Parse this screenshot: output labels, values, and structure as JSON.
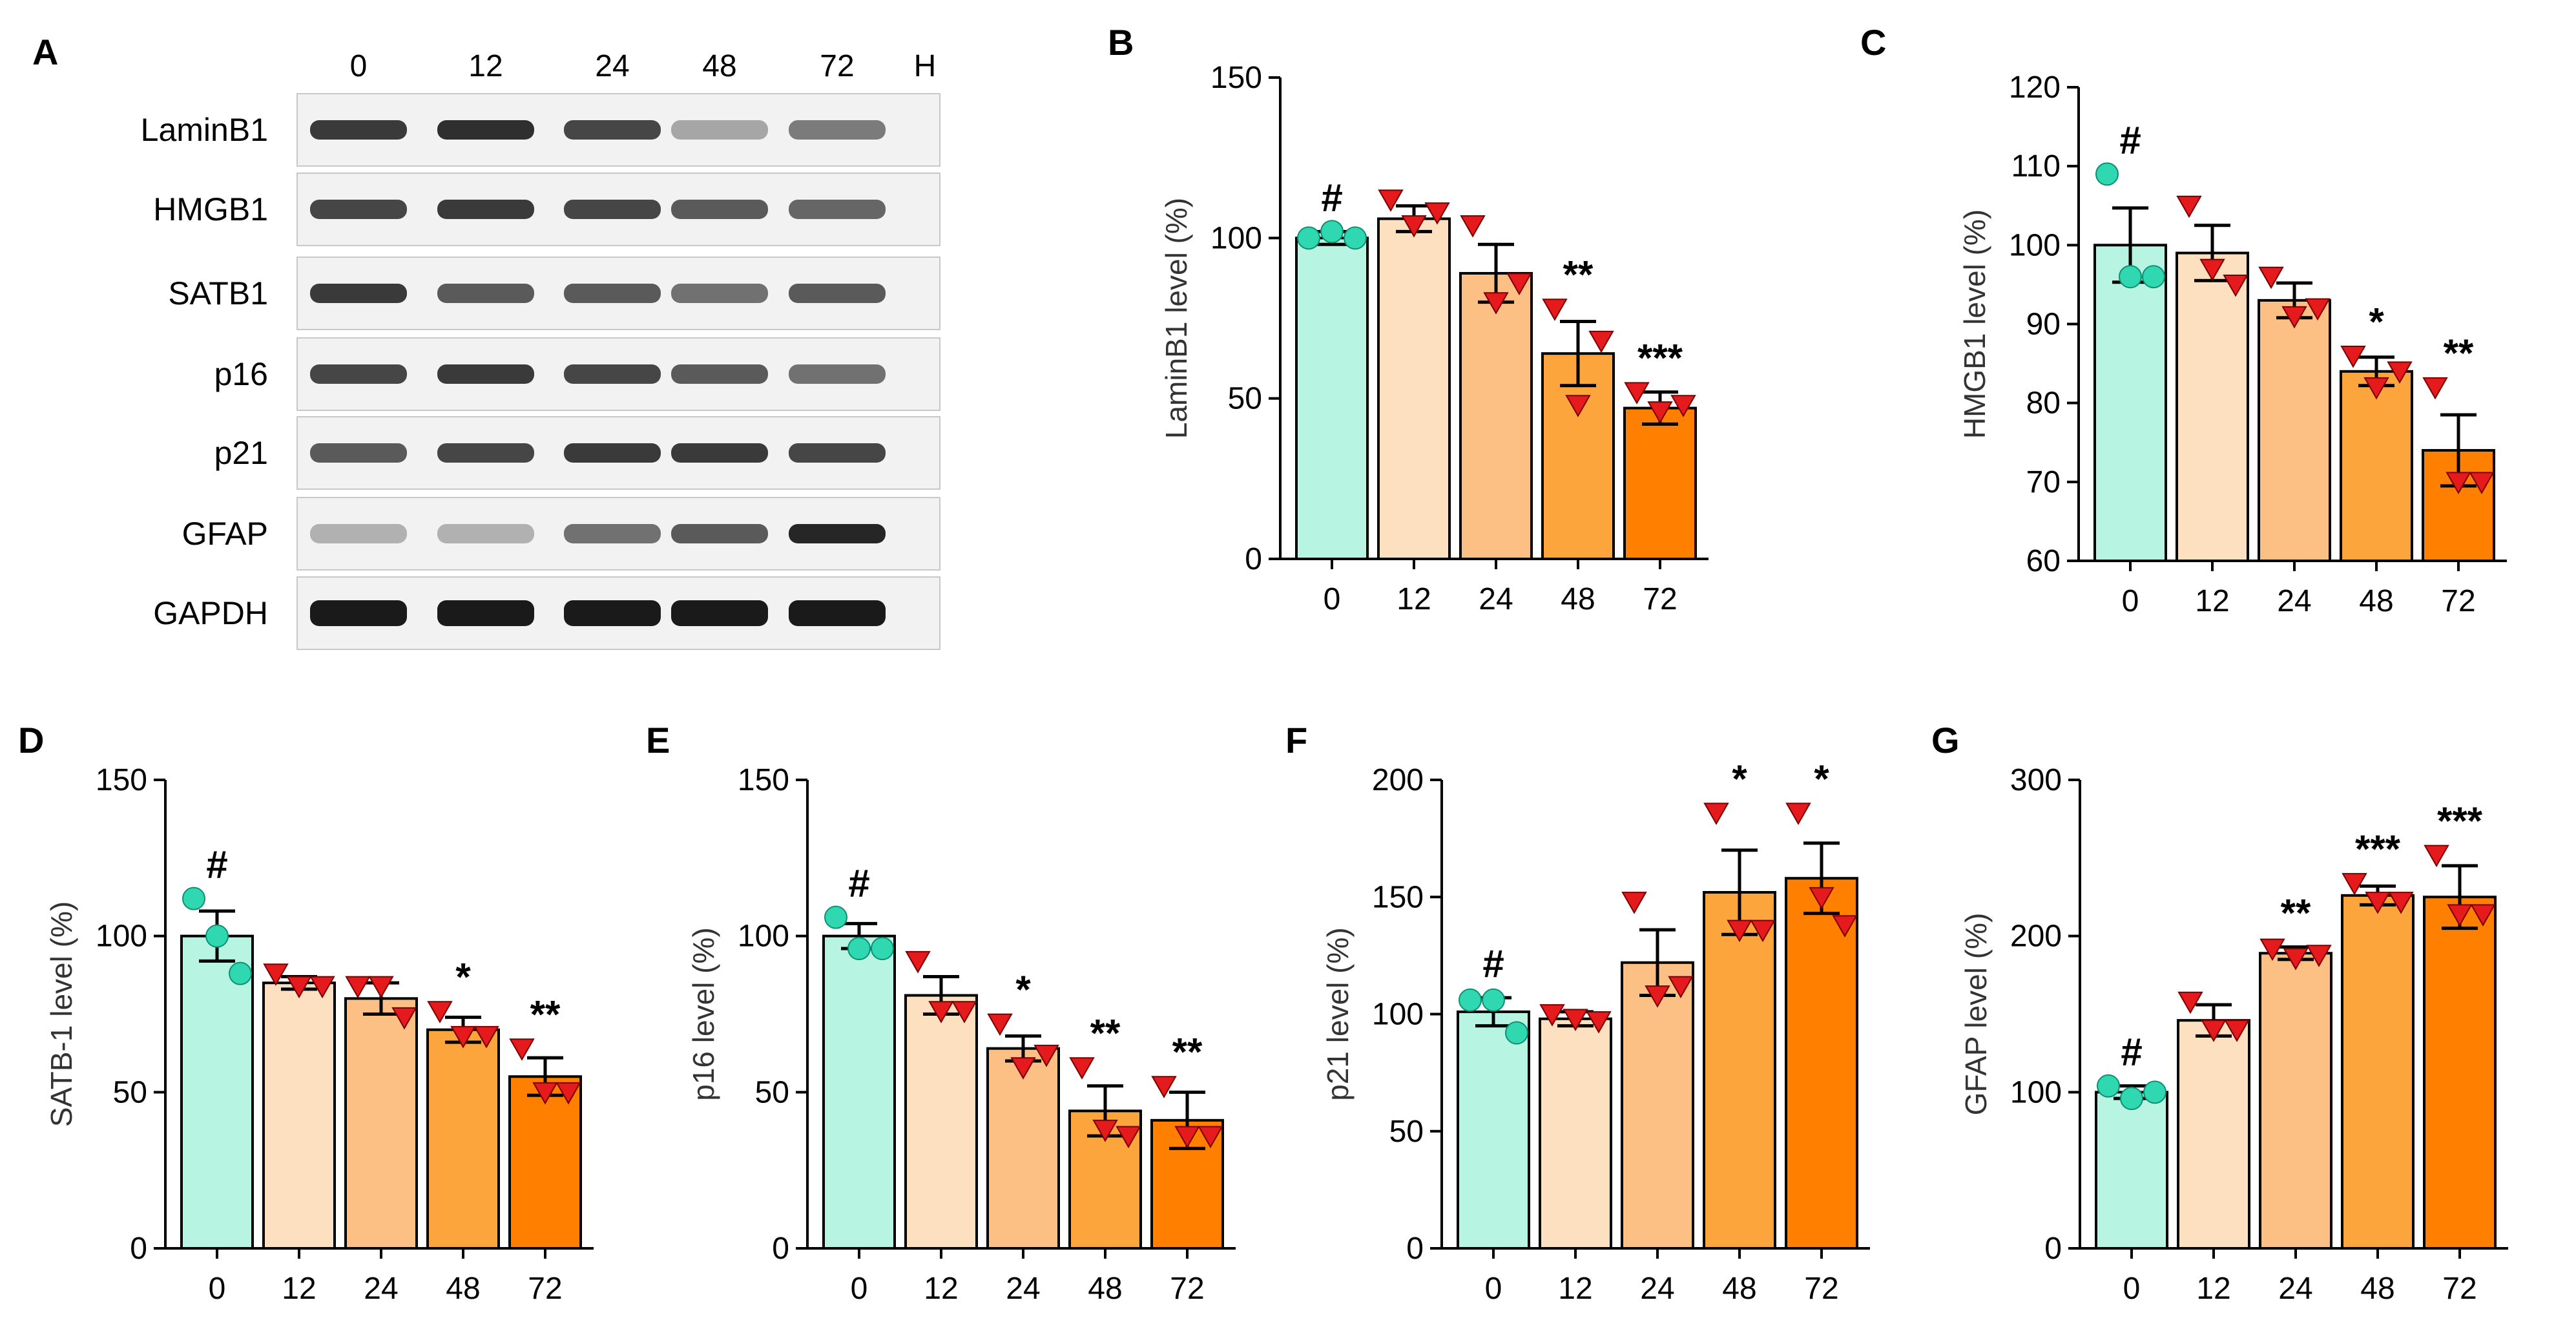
{
  "figure": {
    "colors": {
      "g0": "#b8f4e2",
      "g12": "#fde0c0",
      "g24": "#fdc084",
      "g48": "#fda53d",
      "g72": "#ff8000",
      "circle": "#2fd8b0",
      "triangle": "#e41a1c",
      "blot_bg": "#f2f2f2",
      "band": "#1a1a1a"
    }
  },
  "panel_A": {
    "letter": "A",
    "lanes": [
      "0",
      "12",
      "24",
      "48",
      "72"
    ],
    "unit": "H",
    "rows": [
      {
        "name": "LaminB1",
        "intensity": [
          0.85,
          0.9,
          0.8,
          0.35,
          0.55
        ]
      },
      {
        "name": "HMGB1",
        "intensity": [
          0.8,
          0.85,
          0.8,
          0.7,
          0.65
        ]
      },
      {
        "name": "SATB1",
        "intensity": [
          0.85,
          0.7,
          0.7,
          0.6,
          0.7
        ]
      },
      {
        "name": "p16",
        "intensity": [
          0.8,
          0.85,
          0.8,
          0.7,
          0.6
        ]
      },
      {
        "name": "p21",
        "intensity": [
          0.7,
          0.8,
          0.85,
          0.85,
          0.8
        ]
      },
      {
        "name": "GFAP",
        "intensity": [
          0.3,
          0.3,
          0.6,
          0.7,
          0.95
        ]
      },
      {
        "name": "GAPDH",
        "intensity": [
          1.0,
          1.0,
          1.0,
          1.0,
          1.0
        ]
      }
    ]
  },
  "chart_data": [
    {
      "panel": "B",
      "type": "bar",
      "categories": [
        "0",
        "12",
        "24",
        "48",
        "72"
      ],
      "ylabel": "LaminB1 level (%)",
      "ylim": [
        0,
        150
      ],
      "yticks": [
        0,
        50,
        100,
        150
      ],
      "values": [
        100,
        106,
        89,
        64,
        47
      ],
      "errors": [
        2,
        4,
        9,
        10,
        5
      ],
      "points": [
        [
          100,
          102,
          100
        ],
        [
          112,
          104,
          108
        ],
        [
          104,
          80,
          86
        ],
        [
          78,
          48,
          68
        ],
        [
          52,
          46,
          48
        ]
      ],
      "significance": [
        "#",
        "",
        "",
        "**",
        "***"
      ]
    },
    {
      "panel": "C",
      "type": "bar",
      "categories": [
        "0",
        "12",
        "24",
        "48",
        "72"
      ],
      "ylabel": "HMGB1 level (%)",
      "ylim": [
        60,
        120
      ],
      "yticks": [
        60,
        70,
        80,
        90,
        100,
        110,
        120
      ],
      "values": [
        100,
        99,
        93,
        84,
        74
      ],
      "errors": [
        4.7,
        3.5,
        2.2,
        1.8,
        4.5
      ],
      "points": [
        [
          109,
          96,
          96
        ],
        [
          105,
          97,
          95
        ],
        [
          96,
          91,
          92
        ],
        [
          86,
          82,
          84
        ],
        [
          82,
          70,
          70
        ]
      ],
      "significance": [
        "#",
        "",
        "",
        "*",
        "**"
      ]
    },
    {
      "panel": "D",
      "type": "bar",
      "categories": [
        "0",
        "12",
        "24",
        "48",
        "72"
      ],
      "ylabel": "SATB-1 level (%)",
      "ylim": [
        0,
        150
      ],
      "yticks": [
        0,
        50,
        100,
        150
      ],
      "values": [
        100,
        85,
        80,
        70,
        55
      ],
      "errors": [
        8,
        2,
        5,
        4,
        6
      ],
      "points": [
        [
          112,
          100,
          88
        ],
        [
          88,
          84,
          84
        ],
        [
          84,
          84,
          74
        ],
        [
          76,
          68,
          68
        ],
        [
          64,
          50,
          50
        ]
      ],
      "significance": [
        "#",
        "",
        "",
        "*",
        "**"
      ]
    },
    {
      "panel": "E",
      "type": "bar",
      "categories": [
        "0",
        "12",
        "24",
        "48",
        "72"
      ],
      "ylabel": "p16 level (%)",
      "ylim": [
        0,
        150
      ],
      "yticks": [
        0,
        50,
        100,
        150
      ],
      "values": [
        100,
        81,
        64,
        44,
        41
      ],
      "errors": [
        4,
        6,
        4,
        8,
        9
      ],
      "points": [
        [
          106,
          96,
          96
        ],
        [
          92,
          76,
          76
        ],
        [
          72,
          58,
          62
        ],
        [
          58,
          38,
          36
        ],
        [
          52,
          36,
          36
        ]
      ],
      "significance": [
        "#",
        "",
        "*",
        "**",
        "**"
      ]
    },
    {
      "panel": "F",
      "type": "bar",
      "categories": [
        "0",
        "12",
        "24",
        "48",
        "72"
      ],
      "ylabel": "p21 level (%)",
      "ylim": [
        0,
        200
      ],
      "yticks": [
        0,
        50,
        100,
        150,
        200
      ],
      "values": [
        101,
        98,
        122,
        152,
        158
      ],
      "errors": [
        6,
        3,
        14,
        18,
        15
      ],
      "points": [
        [
          106,
          106,
          92
        ],
        [
          100,
          98,
          97
        ],
        [
          148,
          108,
          112
        ],
        [
          186,
          136,
          136
        ],
        [
          186,
          150,
          138
        ]
      ],
      "significance": [
        "#",
        "",
        "",
        "*",
        "*"
      ]
    },
    {
      "panel": "G",
      "type": "bar",
      "categories": [
        "0",
        "12",
        "24",
        "48",
        "72"
      ],
      "ylabel": "GFAP level (%)",
      "ylim": [
        0,
        300
      ],
      "yticks": [
        0,
        100,
        200,
        300
      ],
      "values": [
        100,
        146,
        189,
        226,
        225
      ],
      "errors": [
        4,
        10,
        4,
        6,
        20
      ],
      "points": [
        [
          104,
          96,
          100
        ],
        [
          158,
          140,
          140
        ],
        [
          192,
          186,
          188
        ],
        [
          234,
          222,
          222
        ],
        [
          252,
          214,
          214
        ]
      ],
      "significance": [
        "#",
        "",
        "**",
        "***",
        "***"
      ]
    }
  ]
}
